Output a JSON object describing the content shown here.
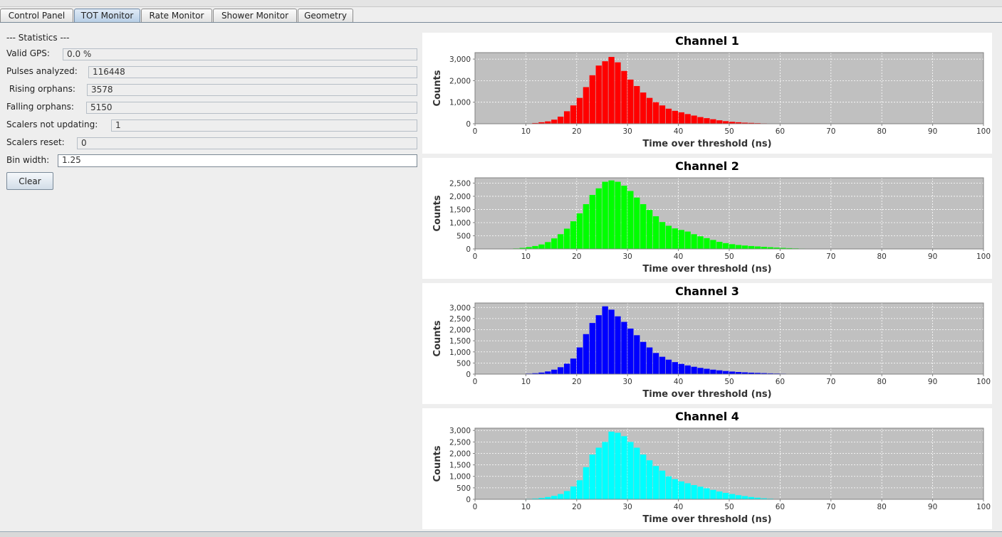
{
  "tabs": [
    {
      "label": "Control Panel",
      "active": false
    },
    {
      "label": "TOT Monitor",
      "active": true
    },
    {
      "label": "Rate Monitor",
      "active": false
    },
    {
      "label": "Shower Monitor",
      "active": false
    },
    {
      "label": "Geometry",
      "active": false
    }
  ],
  "stats": {
    "heading": "--- Statistics ---",
    "valid_gps": {
      "label": "Valid GPS:",
      "value": "0.0 %"
    },
    "pulses_analyzed": {
      "label": "Pulses analyzed:",
      "value": "116448"
    },
    "rising_orphans": {
      "label": " Rising orphans:",
      "value": "3578"
    },
    "falling_orphans": {
      "label": "Falling orphans:",
      "value": "5150"
    },
    "scalers_not_updating": {
      "label": "Scalers not updating:",
      "value": "1"
    },
    "scalers_reset": {
      "label": "Scalers reset:",
      "value": "0"
    },
    "bin_width": {
      "label": "Bin width:",
      "value": "1.25"
    },
    "clear_label": "Clear"
  },
  "chart_data": [
    {
      "type": "bar",
      "title": "Channel 1",
      "xlabel": "Time over threshold (ns)",
      "ylabel": "Counts",
      "color": "#ff0000",
      "xlim": [
        0,
        100
      ],
      "ylim": [
        0,
        3300
      ],
      "xticks": [
        "0",
        "10",
        "20",
        "30",
        "40",
        "50",
        "60",
        "70",
        "80",
        "90",
        "100"
      ],
      "yticks": [
        {
          "v": 0,
          "label": "0"
        },
        {
          "v": 1000,
          "label": "1,000"
        },
        {
          "v": 2000,
          "label": "2,000"
        },
        {
          "v": 3000,
          "label": "3,000"
        }
      ],
      "bin_width": 1.25,
      "bin_start": 7.5,
      "values": [
        5,
        8,
        15,
        35,
        70,
        110,
        190,
        330,
        580,
        850,
        1200,
        1700,
        2250,
        2700,
        2900,
        3100,
        2850,
        2450,
        2050,
        1750,
        1450,
        1200,
        1000,
        850,
        700,
        600,
        530,
        450,
        380,
        310,
        260,
        210,
        160,
        120,
        90,
        70,
        50,
        40,
        30,
        20,
        15,
        10,
        8,
        5,
        3
      ]
    },
    {
      "type": "bar",
      "title": "Channel 2",
      "xlabel": "Time over threshold (ns)",
      "ylabel": "Counts",
      "color": "#00ff00",
      "xlim": [
        0,
        100
      ],
      "ylim": [
        0,
        2700
      ],
      "xticks": [
        "0",
        "10",
        "20",
        "30",
        "40",
        "50",
        "60",
        "70",
        "80",
        "90",
        "100"
      ],
      "yticks": [
        {
          "v": 0,
          "label": "0"
        },
        {
          "v": 500,
          "label": "500"
        },
        {
          "v": 1000,
          "label": "1,000"
        },
        {
          "v": 1500,
          "label": "1,500"
        },
        {
          "v": 2000,
          "label": "2,000"
        },
        {
          "v": 2500,
          "label": "2,500"
        }
      ],
      "bin_width": 1.25,
      "bin_start": 5.0,
      "values": [
        5,
        10,
        20,
        40,
        70,
        110,
        170,
        260,
        400,
        560,
        770,
        1050,
        1350,
        1700,
        2050,
        2300,
        2550,
        2600,
        2550,
        2400,
        2200,
        1950,
        1700,
        1480,
        1240,
        1020,
        880,
        780,
        720,
        660,
        560,
        480,
        410,
        340,
        270,
        220,
        180,
        150,
        130,
        110,
        95,
        80,
        65,
        50,
        40,
        30,
        22,
        15,
        10,
        6,
        3
      ]
    },
    {
      "type": "bar",
      "title": "Channel 3",
      "xlabel": "Time over threshold (ns)",
      "ylabel": "Counts",
      "color": "#0000ff",
      "xlim": [
        0,
        100
      ],
      "ylim": [
        0,
        3200
      ],
      "xticks": [
        "0",
        "10",
        "20",
        "30",
        "40",
        "50",
        "60",
        "70",
        "80",
        "90",
        "100"
      ],
      "yticks": [
        {
          "v": 0,
          "label": "0"
        },
        {
          "v": 500,
          "label": "500"
        },
        {
          "v": 1000,
          "label": "1,000"
        },
        {
          "v": 1500,
          "label": "1,500"
        },
        {
          "v": 2000,
          "label": "2,000"
        },
        {
          "v": 2500,
          "label": "2,500"
        },
        {
          "v": 3000,
          "label": "3,000"
        }
      ],
      "bin_width": 1.25,
      "bin_start": 7.5,
      "values": [
        10,
        15,
        25,
        40,
        70,
        120,
        200,
        310,
        470,
        700,
        1200,
        1800,
        2300,
        2650,
        3050,
        2900,
        2600,
        2350,
        2050,
        1750,
        1450,
        1200,
        950,
        780,
        650,
        540,
        460,
        390,
        330,
        280,
        240,
        200,
        170,
        140,
        115,
        95,
        80,
        65,
        55,
        45,
        35,
        28,
        20,
        15,
        10,
        6,
        3
      ]
    },
    {
      "type": "bar",
      "title": "Channel 4",
      "xlabel": "Time over threshold (ns)",
      "ylabel": "Counts",
      "color": "#00ffff",
      "xlim": [
        0,
        100
      ],
      "ylim": [
        0,
        3100
      ],
      "xticks": [
        "0",
        "10",
        "20",
        "30",
        "40",
        "50",
        "60",
        "70",
        "80",
        "90",
        "100"
      ],
      "yticks": [
        {
          "v": 0,
          "label": "0"
        },
        {
          "v": 500,
          "label": "500"
        },
        {
          "v": 1000,
          "label": "1,000"
        },
        {
          "v": 1500,
          "label": "1,500"
        },
        {
          "v": 2000,
          "label": "2,000"
        },
        {
          "v": 2500,
          "label": "2,500"
        },
        {
          "v": 3000,
          "label": "3,000"
        }
      ],
      "bin_width": 1.25,
      "bin_start": 8.75,
      "values": [
        10,
        20,
        35,
        60,
        100,
        150,
        230,
        360,
        560,
        830,
        1400,
        1950,
        2250,
        2500,
        2950,
        2900,
        2750,
        2500,
        2250,
        1950,
        1700,
        1450,
        1250,
        1000,
        880,
        780,
        700,
        620,
        550,
        480,
        410,
        340,
        280,
        230,
        180,
        140,
        100,
        70,
        45,
        28,
        15,
        8,
        4
      ]
    }
  ]
}
